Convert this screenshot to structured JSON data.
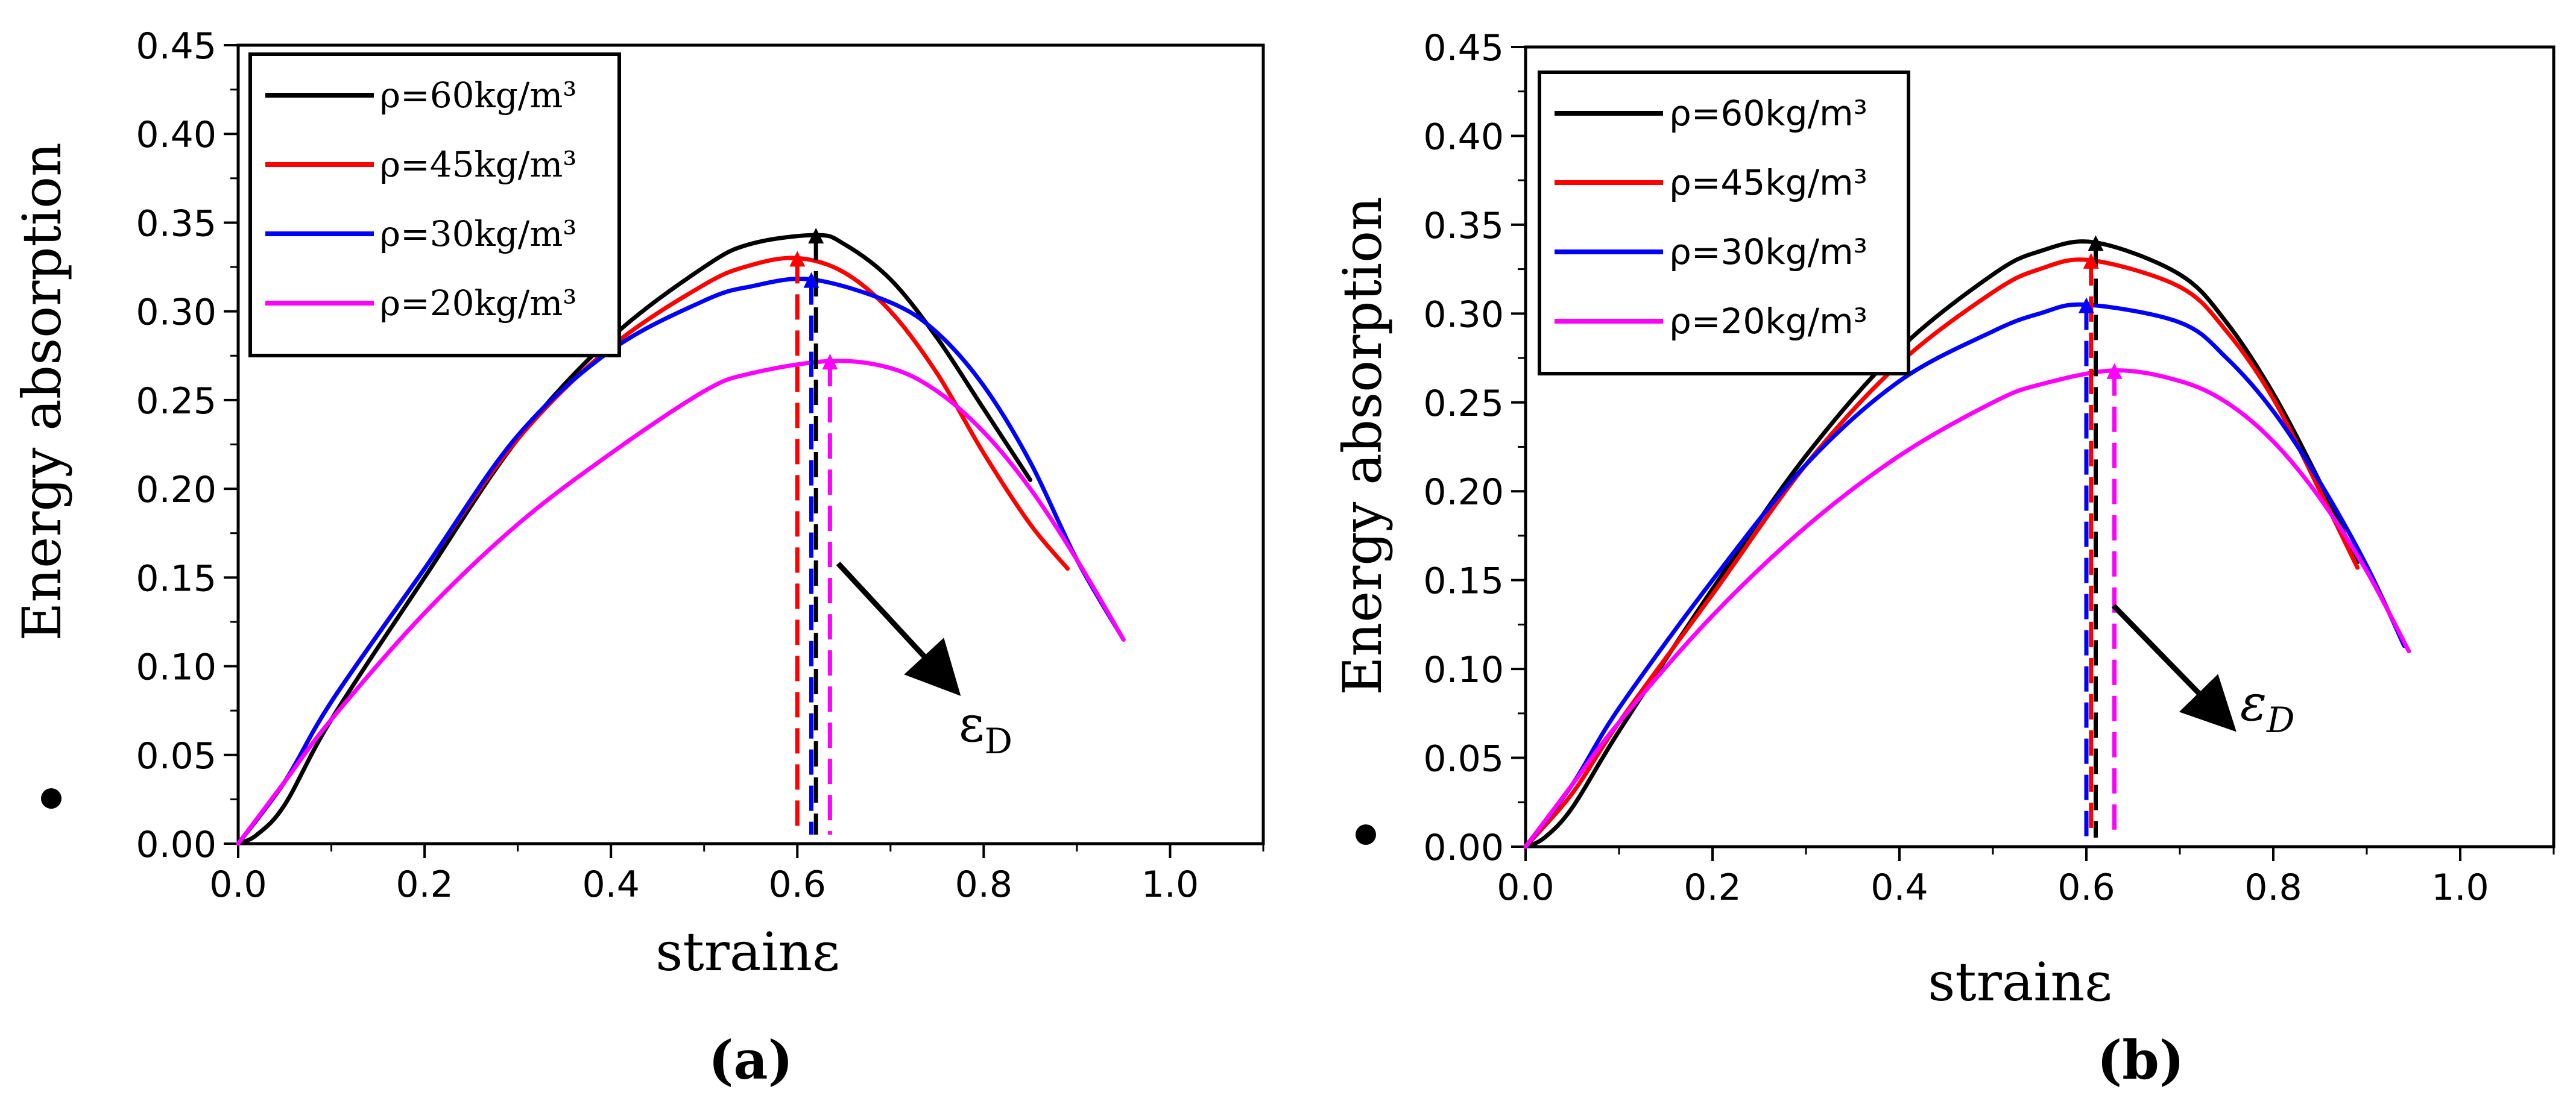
{
  "chart_data": [
    {
      "type": "line",
      "panel_label": "(a)",
      "xlabel": "strainε",
      "ylabel": "Energy absorption",
      "xlim": [
        0,
        1.1
      ],
      "ylim": [
        0,
        0.45
      ],
      "xticks": [
        "0.0",
        "0.2",
        "0.4",
        "0.6",
        "0.8",
        "1.0"
      ],
      "yticks": [
        "0.00",
        "0.05",
        "0.10",
        "0.15",
        "0.20",
        "0.25",
        "0.30",
        "0.35",
        "0.40",
        "0.45"
      ],
      "legend_position": "top-left",
      "legend_font": "serif",
      "annotation": {
        "symbol": "ε",
        "subscript": "D"
      },
      "series": [
        {
          "name": "ρ=60kg/m³",
          "color": "#000000",
          "peak": [
            0.62,
            0.343
          ],
          "x": [
            0.0,
            0.02,
            0.05,
            0.1,
            0.2,
            0.3,
            0.4,
            0.5,
            0.55,
            0.62,
            0.65,
            0.7,
            0.75,
            0.8,
            0.85
          ],
          "y": [
            0.0,
            0.005,
            0.022,
            0.07,
            0.15,
            0.228,
            0.285,
            0.325,
            0.338,
            0.343,
            0.338,
            0.318,
            0.285,
            0.245,
            0.205
          ]
        },
        {
          "name": "ρ=45kg/m³",
          "color": "#ff0000",
          "peak": [
            0.6,
            0.33
          ],
          "x": [
            0.0,
            0.05,
            0.1,
            0.2,
            0.3,
            0.4,
            0.5,
            0.55,
            0.6,
            0.65,
            0.7,
            0.75,
            0.8,
            0.85,
            0.89
          ],
          "y": [
            0.0,
            0.035,
            0.08,
            0.155,
            0.228,
            0.28,
            0.315,
            0.326,
            0.33,
            0.322,
            0.3,
            0.265,
            0.22,
            0.18,
            0.155
          ]
        },
        {
          "name": "ρ=30kg/m³",
          "color": "#0000ff",
          "peak": [
            0.615,
            0.318
          ],
          "x": [
            0.0,
            0.05,
            0.1,
            0.2,
            0.3,
            0.4,
            0.5,
            0.55,
            0.615,
            0.7,
            0.75,
            0.8,
            0.85,
            0.9,
            0.95
          ],
          "y": [
            0.0,
            0.035,
            0.08,
            0.155,
            0.23,
            0.278,
            0.306,
            0.314,
            0.318,
            0.305,
            0.288,
            0.258,
            0.215,
            0.16,
            0.115
          ]
        },
        {
          "name": "ρ=20kg/m³",
          "color": "#ff00ff",
          "peak": [
            0.635,
            0.272
          ],
          "x": [
            0.0,
            0.05,
            0.1,
            0.2,
            0.3,
            0.4,
            0.5,
            0.55,
            0.635,
            0.7,
            0.75,
            0.8,
            0.85,
            0.9,
            0.95
          ],
          "y": [
            0.0,
            0.035,
            0.07,
            0.13,
            0.18,
            0.22,
            0.255,
            0.265,
            0.272,
            0.268,
            0.255,
            0.232,
            0.2,
            0.16,
            0.115
          ]
        }
      ]
    },
    {
      "type": "line",
      "panel_label": "(b)",
      "xlabel": "strainε",
      "ylabel": "Energy absorption",
      "xlim": [
        0,
        1.1
      ],
      "ylim": [
        0,
        0.45
      ],
      "xticks": [
        "0.0",
        "0.2",
        "0.4",
        "0.6",
        "0.8",
        "1.0"
      ],
      "yticks": [
        "0.00",
        "0.05",
        "0.10",
        "0.15",
        "0.20",
        "0.25",
        "0.30",
        "0.35",
        "0.40",
        "0.45"
      ],
      "legend_position": "top-left",
      "legend_font": "sans",
      "annotation": {
        "symbol": "ε",
        "subscript": "D"
      },
      "series": [
        {
          "name": "ρ=60kg/m³",
          "color": "#000000",
          "peak": [
            0.61,
            0.34
          ],
          "x": [
            0.0,
            0.02,
            0.05,
            0.1,
            0.2,
            0.3,
            0.4,
            0.5,
            0.55,
            0.61,
            0.7,
            0.75,
            0.8,
            0.85,
            0.89
          ],
          "y": [
            0.0,
            0.005,
            0.022,
            0.065,
            0.145,
            0.22,
            0.28,
            0.322,
            0.335,
            0.34,
            0.322,
            0.295,
            0.255,
            0.205,
            0.16
          ]
        },
        {
          "name": "ρ=45kg/m³",
          "color": "#ff0000",
          "peak": [
            0.605,
            0.33
          ],
          "x": [
            0.0,
            0.05,
            0.1,
            0.2,
            0.3,
            0.4,
            0.5,
            0.55,
            0.605,
            0.7,
            0.75,
            0.8,
            0.85,
            0.89
          ],
          "y": [
            0.0,
            0.03,
            0.07,
            0.142,
            0.215,
            0.272,
            0.312,
            0.325,
            0.33,
            0.315,
            0.29,
            0.252,
            0.2,
            0.157
          ]
        },
        {
          "name": "ρ=30kg/m³",
          "color": "#0000ff",
          "peak": [
            0.6,
            0.305
          ],
          "x": [
            0.0,
            0.05,
            0.1,
            0.2,
            0.3,
            0.4,
            0.5,
            0.55,
            0.6,
            0.7,
            0.75,
            0.8,
            0.85,
            0.9,
            0.94
          ],
          "y": [
            0.0,
            0.035,
            0.078,
            0.15,
            0.215,
            0.262,
            0.29,
            0.3,
            0.305,
            0.295,
            0.275,
            0.245,
            0.205,
            0.158,
            0.113
          ]
        },
        {
          "name": "ρ=20kg/m³",
          "color": "#ff00ff",
          "peak": [
            0.63,
            0.268
          ],
          "x": [
            0.0,
            0.05,
            0.1,
            0.2,
            0.3,
            0.4,
            0.5,
            0.55,
            0.63,
            0.7,
            0.75,
            0.8,
            0.85,
            0.9,
            0.945
          ],
          "y": [
            0.0,
            0.035,
            0.07,
            0.13,
            0.18,
            0.22,
            0.25,
            0.26,
            0.268,
            0.262,
            0.25,
            0.228,
            0.196,
            0.155,
            0.11
          ]
        }
      ]
    }
  ]
}
